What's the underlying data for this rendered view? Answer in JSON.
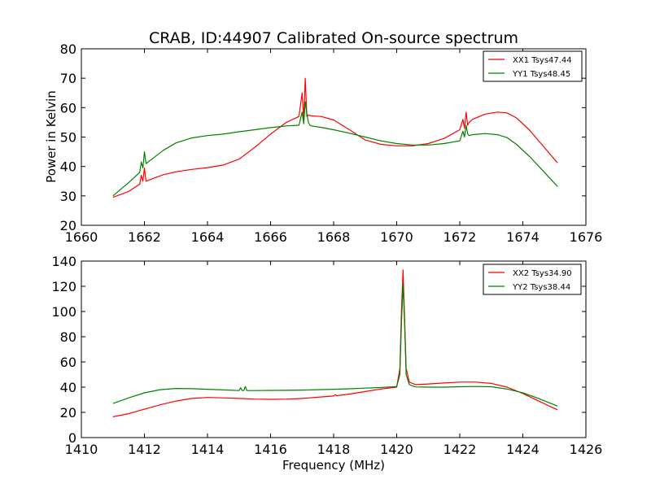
{
  "chart_data": [
    {
      "type": "line",
      "title": "CRAB, ID:44907 Calibrated On-source spectrum",
      "xlabel": "",
      "ylabel": "Power in Kelvin",
      "xlim": [
        1660,
        1676
      ],
      "ylim": [
        20,
        80
      ],
      "xticks": [
        1660,
        1662,
        1664,
        1666,
        1668,
        1670,
        1672,
        1674,
        1676
      ],
      "yticks": [
        20,
        30,
        40,
        50,
        60,
        70,
        80
      ],
      "legend_position": "top-right",
      "colors": {
        "XX1 Tsys47.44": "#ff0000",
        "YY1 Tsys48.45": "#008000"
      },
      "series": [
        {
          "name": "XX1 Tsys47.44",
          "color": "#ff0000",
          "x": [
            1661.0,
            1661.5,
            1661.85,
            1661.9,
            1661.95,
            1662.0,
            1662.05,
            1662.3,
            1662.6,
            1663.0,
            1663.5,
            1664.0,
            1664.5,
            1665.0,
            1665.5,
            1666.0,
            1666.5,
            1666.9,
            1667.0,
            1667.05,
            1667.1,
            1667.15,
            1667.2,
            1667.25,
            1667.3,
            1667.6,
            1668.0,
            1668.5,
            1669.0,
            1669.5,
            1670.0,
            1670.5,
            1671.0,
            1671.5,
            1672.0,
            1672.1,
            1672.15,
            1672.2,
            1672.25,
            1672.3,
            1672.4,
            1672.8,
            1673.2,
            1673.5,
            1673.8,
            1674.2,
            1674.6,
            1675.1
          ],
          "y": [
            29.5,
            31.5,
            34.0,
            37.0,
            35.0,
            39.5,
            35.0,
            36.0,
            37.2,
            38.2,
            39.0,
            39.6,
            40.5,
            42.5,
            46.5,
            51.0,
            55.0,
            57.0,
            65.0,
            56.0,
            70.0,
            57.0,
            57.5,
            57.3,
            57.2,
            57.0,
            55.8,
            52.5,
            49.0,
            47.5,
            47.0,
            47.0,
            47.8,
            49.5,
            52.5,
            56.0,
            53.0,
            58.5,
            54.0,
            55.0,
            56.0,
            57.8,
            58.5,
            58.2,
            56.5,
            52.5,
            47.5,
            41.2
          ]
        },
        {
          "name": "YY1 Tsys48.45",
          "color": "#008000",
          "x": [
            1661.0,
            1661.5,
            1661.85,
            1661.9,
            1661.95,
            1662.0,
            1662.05,
            1662.3,
            1662.6,
            1663.0,
            1663.5,
            1664.0,
            1664.5,
            1665.0,
            1665.5,
            1666.0,
            1666.5,
            1666.9,
            1667.0,
            1667.05,
            1667.1,
            1667.15,
            1667.2,
            1667.25,
            1667.3,
            1667.6,
            1668.0,
            1668.5,
            1669.0,
            1669.5,
            1670.0,
            1670.5,
            1671.0,
            1671.5,
            1672.0,
            1672.1,
            1672.15,
            1672.2,
            1672.25,
            1672.3,
            1672.4,
            1672.8,
            1673.2,
            1673.5,
            1673.8,
            1674.2,
            1674.6,
            1675.1
          ],
          "y": [
            30.0,
            34.5,
            38.0,
            41.5,
            39.5,
            45.0,
            41.0,
            43.0,
            45.5,
            48.0,
            49.7,
            50.5,
            51.0,
            51.8,
            52.5,
            53.2,
            53.8,
            54.0,
            58.5,
            54.5,
            62.0,
            58.0,
            55.0,
            54.0,
            53.8,
            53.3,
            52.5,
            51.3,
            50.0,
            48.7,
            47.8,
            47.3,
            47.3,
            47.8,
            48.7,
            52.0,
            50.0,
            54.0,
            51.0,
            50.5,
            50.8,
            51.2,
            50.8,
            49.8,
            47.5,
            43.5,
            39.0,
            33.2
          ]
        }
      ]
    },
    {
      "type": "line",
      "title": "",
      "xlabel": "Frequency (MHz)",
      "ylabel": "",
      "xlim": [
        1410,
        1426
      ],
      "ylim": [
        0,
        140
      ],
      "xticks": [
        1410,
        1412,
        1414,
        1416,
        1418,
        1420,
        1422,
        1424,
        1426
      ],
      "yticks": [
        0,
        20,
        40,
        60,
        80,
        100,
        120,
        140
      ],
      "legend_position": "top-right",
      "colors": {
        "XX2 Tsys34.90": "#ff0000",
        "YY2 Tsys38.44": "#008000"
      },
      "series": [
        {
          "name": "XX2 Tsys34.90",
          "color": "#ff0000",
          "x": [
            1411.0,
            1411.5,
            1412.0,
            1412.5,
            1413.0,
            1413.5,
            1414.0,
            1414.5,
            1415.0,
            1415.5,
            1416.0,
            1416.5,
            1417.0,
            1417.5,
            1418.0,
            1418.05,
            1418.1,
            1418.5,
            1419.0,
            1419.5,
            1420.0,
            1420.1,
            1420.15,
            1420.2,
            1420.25,
            1420.3,
            1420.4,
            1420.6,
            1421.0,
            1421.5,
            1422.0,
            1422.5,
            1423.0,
            1423.5,
            1424.0,
            1424.5,
            1425.1
          ],
          "y": [
            16.5,
            19.0,
            22.5,
            26.0,
            29.0,
            31.0,
            31.8,
            31.5,
            31.0,
            30.5,
            30.3,
            30.5,
            31.0,
            32.0,
            33.0,
            34.0,
            33.2,
            34.5,
            36.5,
            38.5,
            40.0,
            55.0,
            100.0,
            133.0,
            95.0,
            55.0,
            44.0,
            42.0,
            42.5,
            43.3,
            44.0,
            44.0,
            43.0,
            40.0,
            35.0,
            29.0,
            22.0
          ]
        },
        {
          "name": "YY2 Tsys38.44",
          "color": "#008000",
          "x": [
            1411.0,
            1411.5,
            1412.0,
            1412.5,
            1413.0,
            1413.5,
            1414.0,
            1414.5,
            1415.0,
            1415.05,
            1415.1,
            1415.15,
            1415.2,
            1415.25,
            1415.5,
            1416.0,
            1416.5,
            1417.0,
            1417.5,
            1418.0,
            1418.5,
            1419.0,
            1419.5,
            1420.0,
            1420.1,
            1420.15,
            1420.2,
            1420.25,
            1420.3,
            1420.4,
            1420.6,
            1421.0,
            1421.5,
            1422.0,
            1422.5,
            1423.0,
            1423.5,
            1424.0,
            1424.5,
            1425.1
          ],
          "y": [
            27.0,
            31.5,
            35.5,
            38.0,
            39.0,
            38.8,
            38.3,
            37.8,
            37.3,
            39.5,
            37.3,
            37.3,
            40.5,
            37.3,
            37.3,
            37.4,
            37.5,
            37.7,
            38.0,
            38.3,
            38.7,
            39.2,
            39.7,
            40.5,
            50.0,
            90.0,
            122.0,
            90.0,
            50.0,
            42.0,
            40.2,
            40.0,
            40.0,
            40.3,
            40.5,
            40.3,
            38.5,
            35.5,
            31.0,
            25.0
          ]
        }
      ]
    }
  ]
}
